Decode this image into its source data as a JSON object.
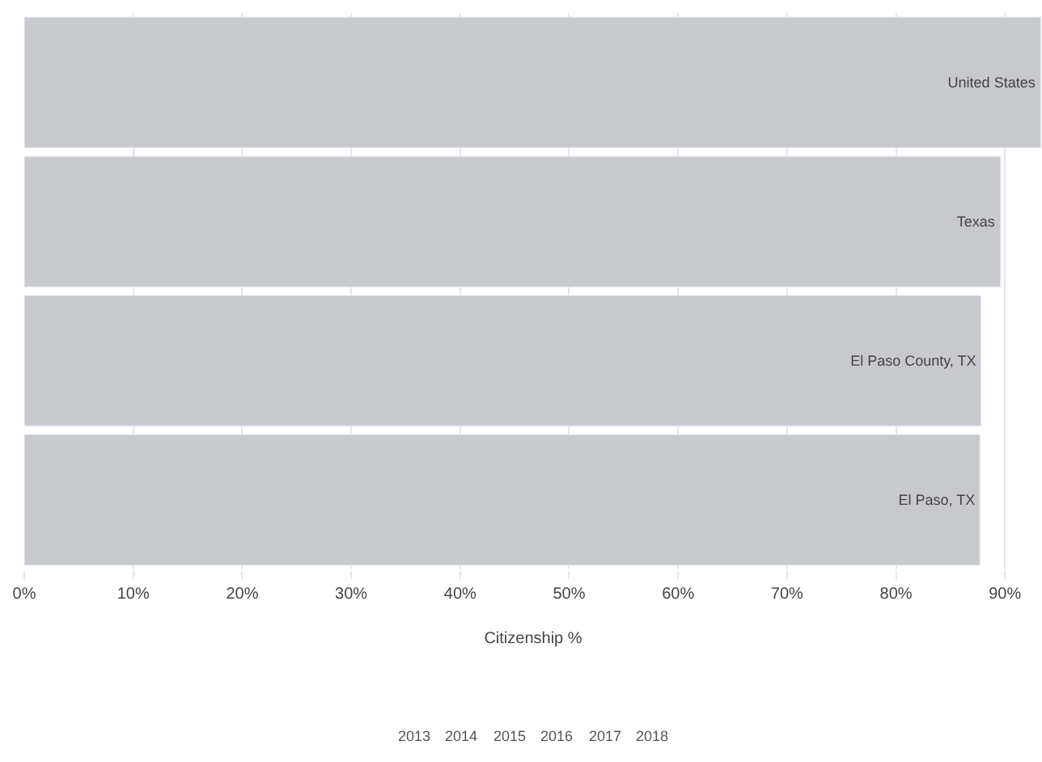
{
  "chart_data": {
    "type": "bar",
    "orientation": "horizontal",
    "categories": [
      "United States",
      "Texas",
      "El Paso County, TX",
      "El Paso, TX"
    ],
    "values": [
      93.3,
      89.6,
      87.8,
      87.7
    ],
    "color": "#c8c9cd",
    "xlabel": "Citizenship %",
    "xlim": [
      0,
      93.4
    ],
    "xticks": [
      {
        "value": 0,
        "label": "0%"
      },
      {
        "value": 10,
        "label": "10%"
      },
      {
        "value": 20,
        "label": "20%"
      },
      {
        "value": 30,
        "label": "30%"
      },
      {
        "value": 40,
        "label": "40%"
      },
      {
        "value": 50,
        "label": "50%"
      },
      {
        "value": 60,
        "label": "60%"
      },
      {
        "value": 70,
        "label": "70%"
      },
      {
        "value": 80,
        "label": "80%"
      },
      {
        "value": 90,
        "label": "90%"
      }
    ],
    "grid": "x",
    "tick_labels": "x",
    "annotations": [
      "2013",
      "2014",
      "2015",
      "2016",
      "2017",
      "2018"
    ]
  }
}
